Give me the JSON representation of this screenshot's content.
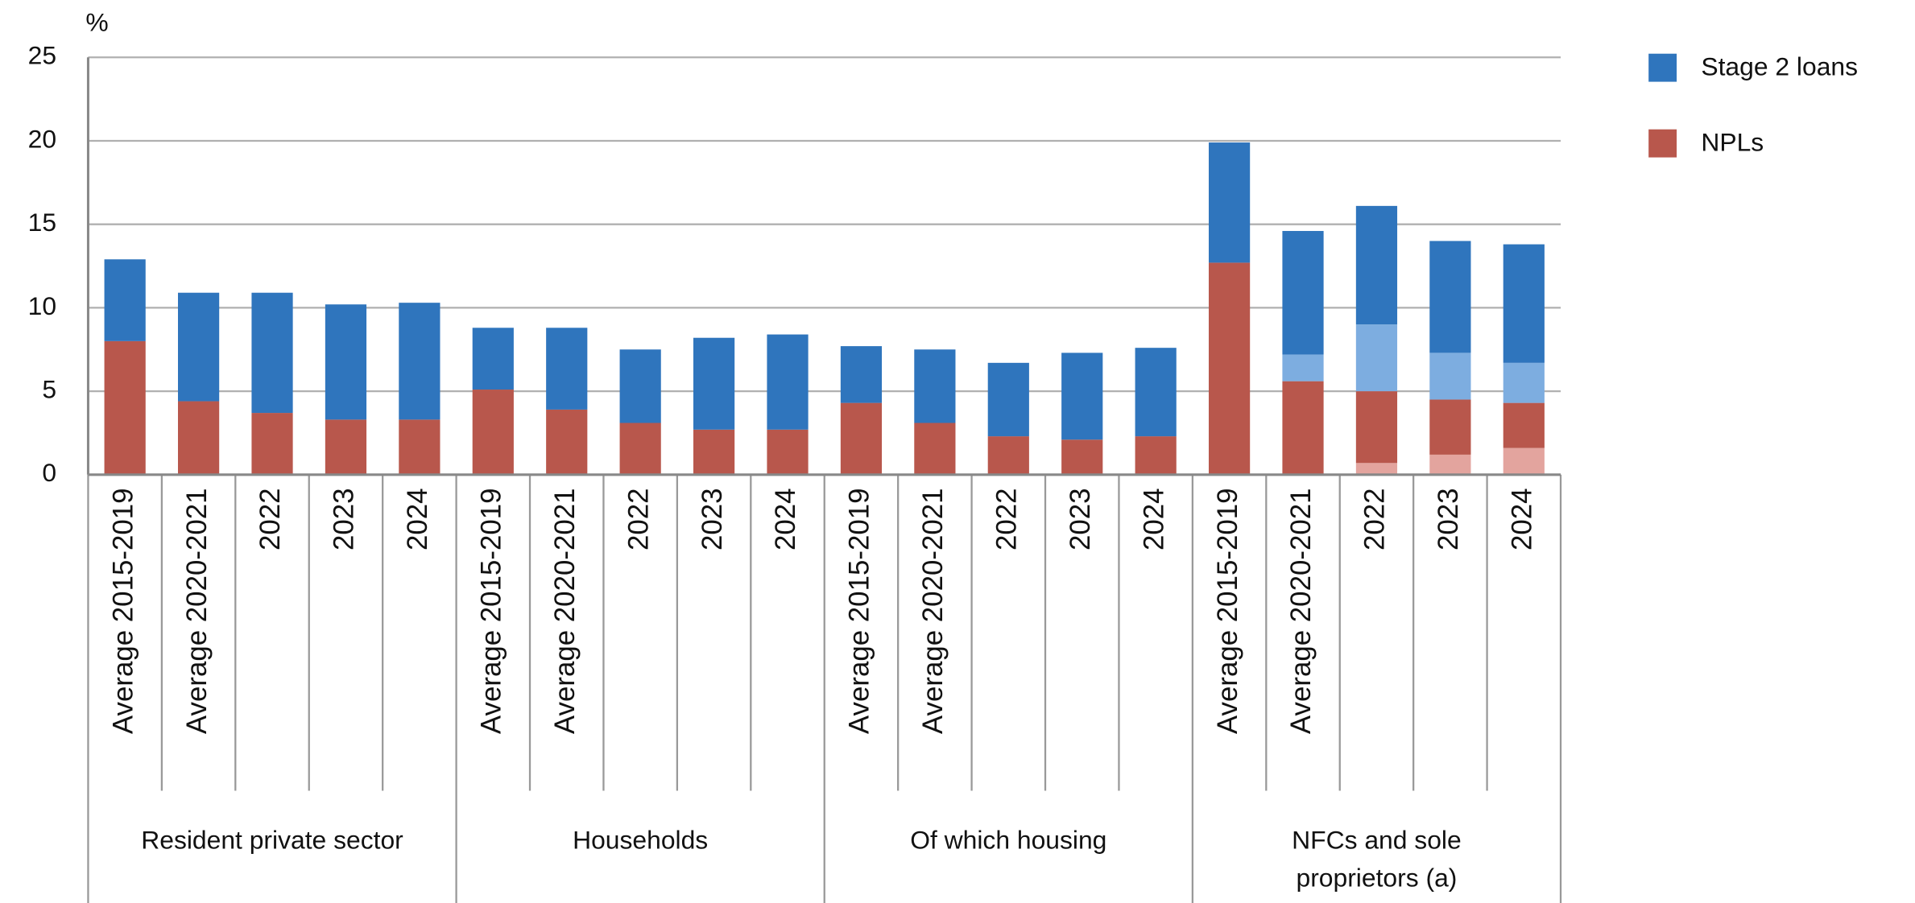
{
  "chart_data": {
    "type": "bar",
    "stacked": true,
    "y_label": "%",
    "ylim": [
      0,
      25
    ],
    "yticks": [
      0,
      5,
      10,
      15,
      20,
      25
    ],
    "grid": true,
    "legend": "top-right",
    "groups": [
      {
        "label": [
          "Resident private sector"
        ],
        "categories": [
          "Average 2015-2019",
          "Average 2020-2021",
          "2022",
          "2023",
          "2024"
        ]
      },
      {
        "label": [
          "Households"
        ],
        "categories": [
          "Average 2015-2019",
          "Average 2020-2021",
          "2022",
          "2023",
          "2024"
        ]
      },
      {
        "label": [
          "Of which housing"
        ],
        "categories": [
          "Average 2015-2019",
          "Average 2020-2021",
          "2022",
          "2023",
          "2024"
        ]
      },
      {
        "label": [
          "NFCs and sole",
          "proprietors (a)"
        ],
        "categories": [
          "Average 2015-2019",
          "Average 2020-2021",
          "2022",
          "2023",
          "2024"
        ]
      }
    ],
    "series": [
      {
        "color": "#e3a49e",
        "values": [
          null,
          null,
          null,
          null,
          null,
          null,
          null,
          null,
          null,
          null,
          null,
          null,
          null,
          null,
          null,
          null,
          null,
          0.7,
          1.2,
          1.6
        ]
      },
      {
        "name": "NPLs",
        "color": "#b8574c",
        "values": [
          8.0,
          4.4,
          3.7,
          3.3,
          3.3,
          5.1,
          3.9,
          3.1,
          2.7,
          2.7,
          4.3,
          3.1,
          2.3,
          2.1,
          2.3,
          12.7,
          5.6,
          4.3,
          3.3,
          2.7
        ]
      },
      {
        "color": "#7dade0",
        "values": [
          null,
          null,
          null,
          null,
          null,
          null,
          null,
          null,
          null,
          null,
          null,
          null,
          null,
          null,
          null,
          null,
          1.6,
          4.0,
          2.8,
          2.4
        ]
      },
      {
        "name": "Stage 2 loans",
        "color": "#2f75bd",
        "values": [
          4.9,
          6.5,
          7.2,
          6.9,
          7.0,
          3.7,
          4.9,
          4.4,
          5.5,
          5.7,
          3.4,
          4.4,
          4.4,
          5.2,
          5.3,
          7.2,
          7.4,
          7.1,
          6.7,
          7.1
        ]
      }
    ]
  }
}
